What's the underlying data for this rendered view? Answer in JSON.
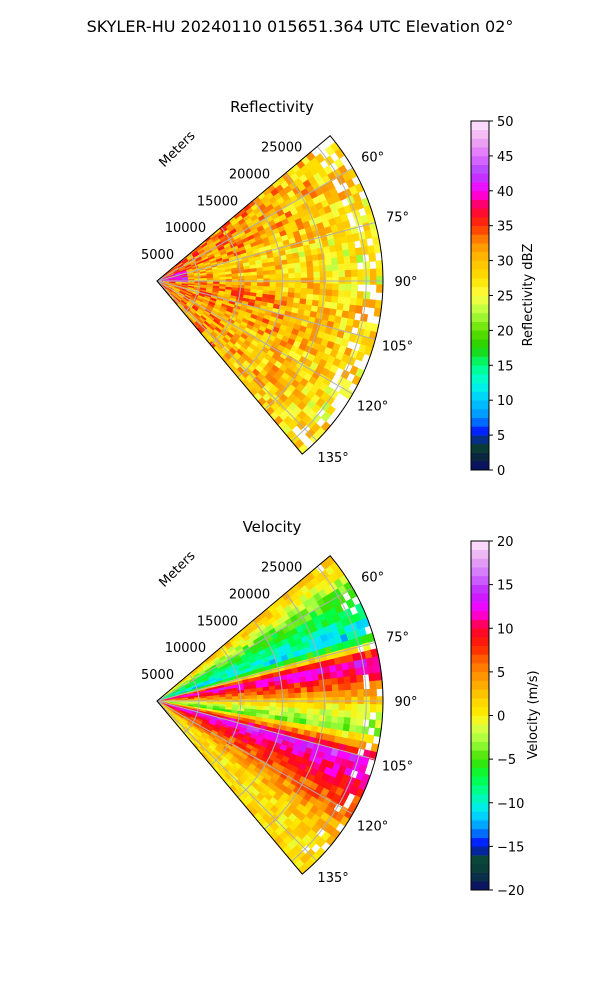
{
  "figure": {
    "title": "SKYLER-HU  20240110  015651.364 UTC Elevation 02°"
  },
  "chart_data": [
    {
      "type": "heatmap",
      "projection": "polar-sector",
      "title": "Reflectivity",
      "range_axis_label": "Meters",
      "range_ticks": [
        5000,
        10000,
        15000,
        20000,
        25000
      ],
      "range_tick_labels": [
        "5000",
        "10000",
        "15000",
        "20000",
        "25000"
      ],
      "range_max": 27000,
      "azimuth_range": [
        50,
        140
      ],
      "azimuth_ticks": [
        60,
        75,
        90,
        105,
        120,
        135
      ],
      "azimuth_tick_labels": [
        "60°",
        "75°",
        "90°",
        "105°",
        "120°",
        "135°"
      ],
      "grid": true,
      "colorbar": {
        "label": "Reflectivity dBZ",
        "min": 0,
        "max": 50,
        "ticks": [
          0,
          5,
          10,
          15,
          20,
          25,
          30,
          35,
          40,
          45,
          50
        ],
        "tick_labels": [
          "0",
          "5",
          "10",
          "15",
          "20",
          "25",
          "30",
          "35",
          "40",
          "45",
          "50"
        ],
        "stops": [
          [
            0,
            "#0a0a6e"
          ],
          [
            2.5,
            "#0a2f2f"
          ],
          [
            4,
            "#0a4a3a"
          ],
          [
            5,
            "#0000ff"
          ],
          [
            7.5,
            "#0090ff"
          ],
          [
            10,
            "#00c8ff"
          ],
          [
            12.5,
            "#00ffe0"
          ],
          [
            15,
            "#00ff80"
          ],
          [
            17.5,
            "#20d000"
          ],
          [
            20,
            "#60e000"
          ],
          [
            22.5,
            "#b0ff40"
          ],
          [
            25,
            "#ffff40"
          ],
          [
            27.5,
            "#ffe000"
          ],
          [
            30,
            "#ffc000"
          ],
          [
            32.5,
            "#ff9000"
          ],
          [
            35,
            "#ff3000"
          ],
          [
            37.5,
            "#ff0040"
          ],
          [
            40,
            "#ff00ff"
          ],
          [
            42.5,
            "#b040ff"
          ],
          [
            45,
            "#e070ff"
          ],
          [
            47.5,
            "#f0b0f0"
          ],
          [
            50,
            "#ffe8ff"
          ]
        ]
      },
      "field_description": {
        "near_core_dbz": 40,
        "typical_dbz": 30,
        "far_edge_dbz": 22,
        "bands": [
          {
            "azimuth": 65,
            "value": 34
          },
          {
            "azimuth": 80,
            "value": 31
          },
          {
            "azimuth": 100,
            "value": 34
          },
          {
            "azimuth": 120,
            "value": 33
          }
        ]
      }
    },
    {
      "type": "heatmap",
      "projection": "polar-sector",
      "title": "Velocity",
      "range_axis_label": "Meters",
      "range_ticks": [
        5000,
        10000,
        15000,
        20000,
        25000
      ],
      "range_tick_labels": [
        "5000",
        "10000",
        "15000",
        "20000",
        "25000"
      ],
      "range_max": 27000,
      "azimuth_range": [
        50,
        140
      ],
      "azimuth_ticks": [
        60,
        75,
        90,
        105,
        120,
        135
      ],
      "azimuth_tick_labels": [
        "60°",
        "75°",
        "90°",
        "105°",
        "120°",
        "135°"
      ],
      "grid": true,
      "colorbar": {
        "label": "Velocity (m/s)",
        "min": -20,
        "max": 20,
        "ticks": [
          -20,
          -15,
          -10,
          -5,
          0,
          5,
          10,
          15,
          20
        ],
        "tick_labels": [
          "−20",
          "−15",
          "−10",
          "−5",
          "0",
          "5",
          "10",
          "15",
          "20"
        ],
        "stops": [
          [
            -20,
            "#0a0a6e"
          ],
          [
            -18,
            "#0a3a3a"
          ],
          [
            -16,
            "#0a4a3a"
          ],
          [
            -15,
            "#0000ff"
          ],
          [
            -13,
            "#0090ff"
          ],
          [
            -11,
            "#00e8ff"
          ],
          [
            -9,
            "#00ffa0"
          ],
          [
            -7,
            "#00ff40"
          ],
          [
            -5,
            "#40e000"
          ],
          [
            -3,
            "#a0ff40"
          ],
          [
            -1,
            "#e8ff40"
          ],
          [
            0,
            "#ffee00"
          ],
          [
            2,
            "#ffd000"
          ],
          [
            4,
            "#ffa000"
          ],
          [
            6,
            "#ff7000"
          ],
          [
            8,
            "#ff2000"
          ],
          [
            10,
            "#ff0030"
          ],
          [
            12,
            "#ff00ff"
          ],
          [
            14,
            "#c020ff"
          ],
          [
            16,
            "#d070ff"
          ],
          [
            18,
            "#e8a8f0"
          ],
          [
            20,
            "#ffe8ff"
          ]
        ]
      },
      "field_description": {
        "bands": [
          {
            "azimuth": 52,
            "value": 2
          },
          {
            "azimuth": 62,
            "value": -6
          },
          {
            "azimuth": 72,
            "value": -11
          },
          {
            "azimuth": 79,
            "value": 13
          },
          {
            "azimuth": 86,
            "value": 6
          },
          {
            "azimuth": 91,
            "value": 1
          },
          {
            "azimuth": 98,
            "value": -4
          },
          {
            "azimuth": 106,
            "value": 14
          },
          {
            "azimuth": 116,
            "value": 8
          },
          {
            "azimuth": 130,
            "value": 1
          }
        ]
      }
    }
  ]
}
